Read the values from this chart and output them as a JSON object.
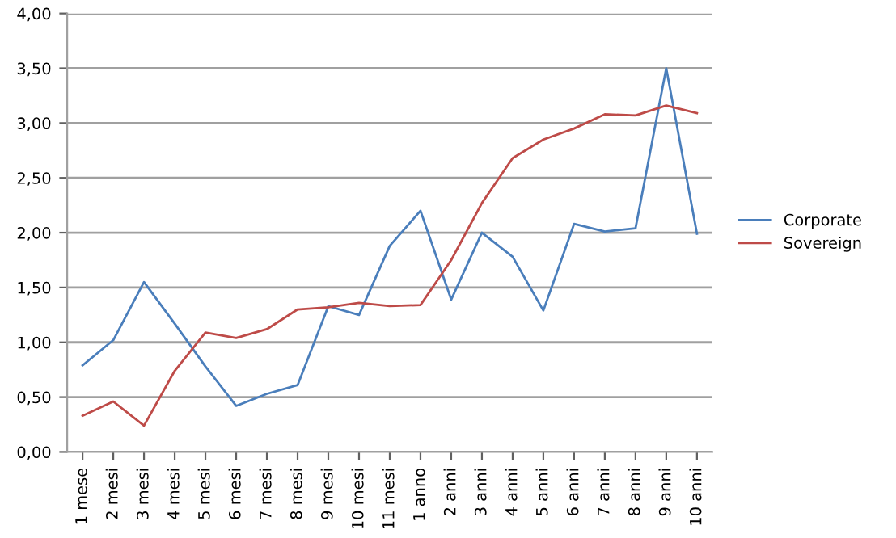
{
  "chart_data": {
    "type": "line",
    "categories": [
      "1 mese",
      "2 mesi",
      "3 mesi",
      "4 mesi",
      "5 mesi",
      "6 mesi",
      "7 mesi",
      "8 mesi",
      "9 mesi",
      "10 mesi",
      "11 mesi",
      "1 anno",
      "2 anni",
      "3 anni",
      "4 anni",
      "5 anni",
      "6 anni",
      "7 anni",
      "8 anni",
      "9 anni",
      "10 anni"
    ],
    "series": [
      {
        "name": "Corporate",
        "color": "#4a7ebb",
        "values": [
          0.79,
          1.02,
          1.55,
          1.17,
          0.78,
          0.42,
          0.53,
          0.61,
          1.33,
          1.25,
          1.88,
          2.2,
          1.39,
          2.0,
          1.78,
          1.29,
          2.08,
          2.01,
          2.04,
          3.5,
          1.99
        ]
      },
      {
        "name": "Sovereign",
        "color": "#be4b48",
        "values": [
          0.33,
          0.46,
          0.24,
          0.74,
          1.09,
          1.04,
          1.12,
          1.3,
          1.32,
          1.36,
          1.33,
          1.34,
          1.75,
          2.27,
          2.68,
          2.85,
          2.95,
          3.08,
          3.07,
          3.16,
          3.09
        ]
      }
    ],
    "ylim": [
      0,
      4
    ],
    "yticks": [
      {
        "value": 0,
        "label": "0,00"
      },
      {
        "value": 0.5,
        "label": "0,50"
      },
      {
        "value": 1,
        "label": "1,00"
      },
      {
        "value": 1.5,
        "label": "1,50"
      },
      {
        "value": 2,
        "label": "2,00"
      },
      {
        "value": 2.5,
        "label": "2,50"
      },
      {
        "value": 3,
        "label": "3,00"
      },
      {
        "value": 3.5,
        "label": "3,50"
      },
      {
        "value": 4,
        "label": "4,00"
      }
    ],
    "grid": "y",
    "legend": "right",
    "marker": "none",
    "line_style": "solid"
  }
}
